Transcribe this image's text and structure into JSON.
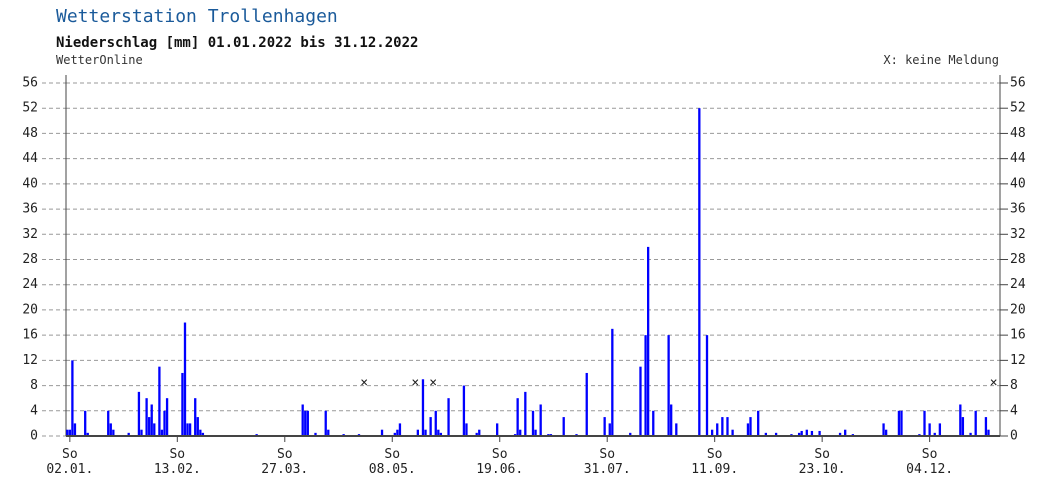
{
  "chart_data": {
    "type": "bar",
    "title": "Wetterstation Trollenhagen",
    "subtitle": "Niederschlag [mm] 01.01.2022 bis 31.12.2022",
    "source": "WetterOnline",
    "legend_note": "X: keine Meldung",
    "color": "#0000ff",
    "grid": true,
    "ylim": [
      0,
      56
    ],
    "yticks": [
      0,
      4,
      8,
      12,
      16,
      20,
      24,
      28,
      32,
      36,
      40,
      44,
      48,
      52,
      56
    ],
    "categories": [
      null,
      "So\n02.01.",
      null,
      null,
      null,
      null,
      null,
      null,
      null,
      null,
      null,
      null,
      null,
      null,
      null,
      null,
      null,
      null,
      null,
      null,
      null,
      null,
      null,
      null,
      null,
      null,
      null,
      null,
      null,
      null,
      null,
      null,
      null,
      null,
      null,
      null,
      null,
      null,
      null,
      null,
      null,
      null,
      null,
      "So\n13.02.",
      null,
      null,
      null,
      null,
      null,
      null,
      null,
      null,
      null,
      null,
      null,
      null,
      null,
      null,
      null,
      null,
      null,
      null,
      null,
      null,
      null,
      null,
      null,
      null,
      null,
      null,
      null,
      null,
      null,
      null,
      null,
      null,
      null,
      null,
      null,
      null,
      null,
      null,
      null,
      null,
      null,
      "So\n27.03.",
      null,
      null,
      null,
      null,
      null,
      null,
      null,
      null,
      null,
      null,
      null,
      null,
      null,
      null,
      null,
      null,
      null,
      null,
      null,
      null,
      null,
      null,
      null,
      null,
      null,
      null,
      null,
      null,
      null,
      null,
      null,
      null,
      null,
      null,
      null,
      null,
      null,
      null,
      null,
      null,
      null,
      "So\n08.05.",
      null,
      null,
      null,
      null,
      null,
      null,
      null,
      null,
      null,
      null,
      null,
      null,
      null,
      null,
      null,
      null,
      null,
      null,
      null,
      null,
      null,
      null,
      null,
      null,
      null,
      null,
      null,
      null,
      null,
      null,
      null,
      null,
      null,
      null,
      null,
      null,
      null,
      null,
      null,
      null,
      null,
      "So\n19.06.",
      null,
      null,
      null,
      null,
      null,
      null,
      null,
      null,
      null,
      null,
      null,
      null,
      null,
      null,
      null,
      null,
      null,
      null,
      null,
      null,
      null,
      null,
      null,
      null,
      null,
      null,
      null,
      null,
      null,
      null,
      null,
      null,
      null,
      null,
      null,
      null,
      null,
      null,
      null,
      null,
      null,
      "So\n31.07.",
      null,
      null,
      null,
      null,
      null,
      null,
      null,
      null,
      null,
      null,
      null,
      null,
      null,
      null,
      null,
      null,
      null,
      null,
      null,
      null,
      null,
      null,
      null,
      null,
      null,
      null,
      null,
      null,
      null,
      null,
      null,
      null,
      null,
      null,
      null,
      null,
      null,
      null,
      null,
      null,
      null,
      "So\n11.09.",
      null,
      null,
      null,
      null,
      null,
      null,
      null,
      null,
      null,
      null,
      null,
      null,
      null,
      null,
      null,
      null,
      null,
      null,
      null,
      null,
      null,
      null,
      null,
      null,
      null,
      null,
      null,
      null,
      null,
      null,
      null,
      null,
      null,
      null,
      null,
      null,
      null,
      null,
      null,
      null,
      null,
      "So\n23.10.",
      null,
      null,
      null,
      null,
      null,
      null,
      null,
      null,
      null,
      null,
      null,
      null,
      null,
      null,
      null,
      null,
      null,
      null,
      null,
      null,
      null,
      null,
      null,
      null,
      null,
      null,
      null,
      null,
      null,
      null,
      null,
      null,
      null,
      null,
      null,
      null,
      null,
      null,
      null,
      null,
      null,
      "So\n04.12.",
      null,
      null,
      null,
      null,
      null,
      null,
      null,
      null,
      null,
      null,
      null,
      null,
      null,
      null,
      null,
      null,
      null,
      null,
      null,
      null,
      null,
      null,
      null,
      null,
      null,
      null,
      null
    ],
    "values": [
      1,
      1,
      12,
      2,
      0,
      0,
      0,
      4,
      0.5,
      0,
      0,
      0,
      0,
      0,
      0,
      0,
      4,
      2,
      1,
      0,
      0,
      0,
      0,
      0,
      0.5,
      0,
      0,
      0,
      7,
      1,
      0,
      6,
      3,
      5,
      2,
      0,
      11,
      1,
      4,
      6,
      0,
      0,
      0,
      0,
      0,
      10,
      18,
      2,
      2,
      0,
      6,
      3,
      1,
      0.5,
      0,
      0,
      0,
      0,
      0,
      0,
      0,
      0,
      0,
      0,
      0,
      0,
      0,
      0,
      0,
      0,
      0,
      0,
      0,
      0,
      0.3,
      0,
      0,
      0,
      0,
      0,
      0,
      0,
      0,
      0,
      0,
      0,
      0,
      0,
      0,
      0,
      0,
      0,
      5,
      4,
      4,
      0,
      0,
      0.5,
      0,
      0,
      0,
      4,
      1,
      0,
      0,
      0,
      0,
      0,
      0.3,
      0,
      0,
      0,
      0,
      0,
      0.3,
      0,
      null,
      0,
      0,
      0,
      0,
      0,
      0,
      1,
      0,
      0,
      0,
      0,
      0.5,
      1,
      2,
      0,
      0,
      0,
      0,
      0,
      null,
      1,
      0,
      9,
      1,
      0,
      3,
      null,
      4,
      1,
      0.5,
      0,
      0,
      6,
      0,
      0,
      0,
      0,
      0,
      8,
      2,
      0,
      0,
      0,
      0.5,
      1,
      0,
      0,
      0,
      0,
      0,
      0,
      2,
      0,
      0,
      0,
      0,
      0,
      0,
      0.3,
      6,
      1,
      0,
      7,
      0,
      0,
      4,
      1,
      0,
      5,
      0,
      0,
      0.3,
      0.3,
      0,
      0,
      0,
      0,
      3,
      0,
      0,
      0,
      0,
      0.3,
      0,
      0,
      0,
      10,
      0,
      0,
      0,
      0,
      0,
      0,
      3,
      0,
      2,
      17,
      0,
      0,
      0,
      0,
      0,
      0,
      0.5,
      0,
      0,
      0,
      11,
      0,
      16,
      30,
      0,
      4,
      0,
      0,
      0,
      0,
      0,
      16,
      5,
      0,
      2,
      0,
      0,
      0,
      0,
      0,
      0,
      0,
      0,
      52,
      0,
      0,
      16,
      0,
      1,
      0,
      2,
      0,
      3,
      0,
      3,
      0,
      1,
      0,
      0,
      0,
      0,
      0,
      2,
      3,
      0,
      0,
      4,
      0,
      0,
      0.5,
      0,
      0,
      0,
      0.5,
      0,
      0,
      0,
      0,
      0,
      0.3,
      0,
      0,
      0.5,
      0.8,
      0,
      1,
      0,
      0.8,
      0,
      0,
      0.8,
      0,
      0,
      0,
      0,
      0,
      0,
      0,
      0.5,
      0,
      1,
      0,
      0,
      0.3,
      0,
      0,
      0,
      0,
      0,
      0,
      0,
      0,
      0,
      0,
      0,
      2,
      1,
      0,
      0,
      0,
      0,
      4,
      4,
      0,
      0,
      0,
      0,
      0,
      0,
      0.3,
      0,
      4,
      0,
      2,
      0,
      0.5,
      0,
      2,
      0,
      0,
      0,
      0,
      0,
      0,
      0,
      5,
      3,
      0,
      0,
      0.5,
      0,
      4,
      0,
      0,
      0,
      3,
      1,
      0,
      null,
      0,
      0
    ]
  }
}
